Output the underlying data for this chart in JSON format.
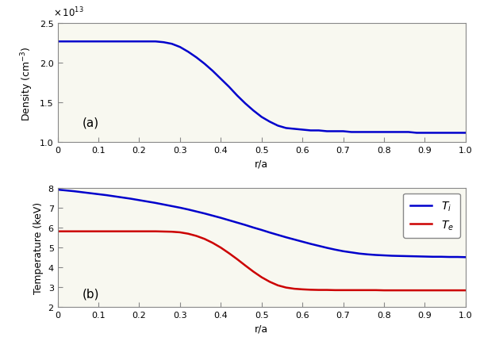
{
  "density_x": [
    0.0,
    0.02,
    0.04,
    0.06,
    0.08,
    0.1,
    0.12,
    0.14,
    0.16,
    0.18,
    0.2,
    0.22,
    0.24,
    0.26,
    0.28,
    0.3,
    0.32,
    0.34,
    0.36,
    0.38,
    0.4,
    0.42,
    0.44,
    0.46,
    0.48,
    0.5,
    0.52,
    0.54,
    0.56,
    0.58,
    0.6,
    0.62,
    0.64,
    0.66,
    0.68,
    0.7,
    0.72,
    0.74,
    0.76,
    0.78,
    0.8,
    0.82,
    0.84,
    0.86,
    0.88,
    0.9,
    0.92,
    0.94,
    0.96,
    0.98,
    1.0
  ],
  "density_y": [
    2.27,
    2.27,
    2.27,
    2.27,
    2.27,
    2.27,
    2.27,
    2.27,
    2.27,
    2.27,
    2.27,
    2.27,
    2.27,
    2.26,
    2.24,
    2.2,
    2.14,
    2.07,
    1.99,
    1.9,
    1.8,
    1.7,
    1.59,
    1.49,
    1.4,
    1.32,
    1.26,
    1.21,
    1.18,
    1.17,
    1.16,
    1.15,
    1.15,
    1.14,
    1.14,
    1.14,
    1.13,
    1.13,
    1.13,
    1.13,
    1.13,
    1.13,
    1.13,
    1.13,
    1.12,
    1.12,
    1.12,
    1.12,
    1.12,
    1.12,
    1.12
  ],
  "density_scale": 10000000000000.0,
  "temp_x": [
    0.0,
    0.02,
    0.04,
    0.06,
    0.08,
    0.1,
    0.12,
    0.14,
    0.16,
    0.18,
    0.2,
    0.22,
    0.24,
    0.26,
    0.28,
    0.3,
    0.32,
    0.34,
    0.36,
    0.38,
    0.4,
    0.42,
    0.44,
    0.46,
    0.48,
    0.5,
    0.52,
    0.54,
    0.56,
    0.58,
    0.6,
    0.62,
    0.64,
    0.66,
    0.68,
    0.7,
    0.72,
    0.74,
    0.76,
    0.78,
    0.8,
    0.82,
    0.84,
    0.86,
    0.88,
    0.9,
    0.92,
    0.94,
    0.96,
    0.98,
    1.0
  ],
  "Ti_y": [
    7.9,
    7.86,
    7.82,
    7.77,
    7.72,
    7.67,
    7.62,
    7.56,
    7.5,
    7.44,
    7.37,
    7.3,
    7.23,
    7.15,
    7.07,
    6.99,
    6.9,
    6.8,
    6.7,
    6.59,
    6.48,
    6.36,
    6.24,
    6.12,
    5.99,
    5.87,
    5.74,
    5.62,
    5.5,
    5.39,
    5.28,
    5.17,
    5.07,
    4.97,
    4.88,
    4.8,
    4.74,
    4.68,
    4.64,
    4.61,
    4.59,
    4.57,
    4.56,
    4.55,
    4.54,
    4.53,
    4.52,
    4.52,
    4.51,
    4.51,
    4.5
  ],
  "Te_y": [
    5.8,
    5.8,
    5.8,
    5.8,
    5.8,
    5.8,
    5.8,
    5.8,
    5.8,
    5.8,
    5.8,
    5.8,
    5.8,
    5.79,
    5.78,
    5.75,
    5.68,
    5.57,
    5.42,
    5.22,
    4.98,
    4.7,
    4.4,
    4.08,
    3.77,
    3.49,
    3.26,
    3.08,
    2.97,
    2.91,
    2.88,
    2.86,
    2.85,
    2.85,
    2.84,
    2.84,
    2.84,
    2.84,
    2.84,
    2.84,
    2.83,
    2.83,
    2.83,
    2.83,
    2.83,
    2.83,
    2.83,
    2.83,
    2.83,
    2.83,
    2.83
  ],
  "density_ylabel": "Density (cm$^{-3}$)",
  "temp_ylabel": "Temperature (keV)",
  "xlabel": "r/a",
  "label_a": "(a)",
  "label_b": "(b)",
  "Ti_label": "$T_i$",
  "Te_label": "$T_e$",
  "density_ylim": [
    1.0,
    2.5
  ],
  "temp_ylim": [
    2.0,
    8.0
  ],
  "xlim": [
    0.0,
    1.0
  ],
  "density_yticks": [
    1.0,
    1.5,
    2.0,
    2.5
  ],
  "temp_yticks": [
    2,
    3,
    4,
    5,
    6,
    7,
    8
  ],
  "xticks": [
    0,
    0.1,
    0.2,
    0.3,
    0.4,
    0.5,
    0.6,
    0.7,
    0.8,
    0.9,
    1.0
  ],
  "line_color_blue": "#0000CC",
  "line_color_red": "#CC0000",
  "bg_color": "#FFFFFF",
  "axes_bg_color": "#F8F8F0",
  "linewidth": 1.8,
  "spine_color": "#888888",
  "tick_color": "#444444"
}
